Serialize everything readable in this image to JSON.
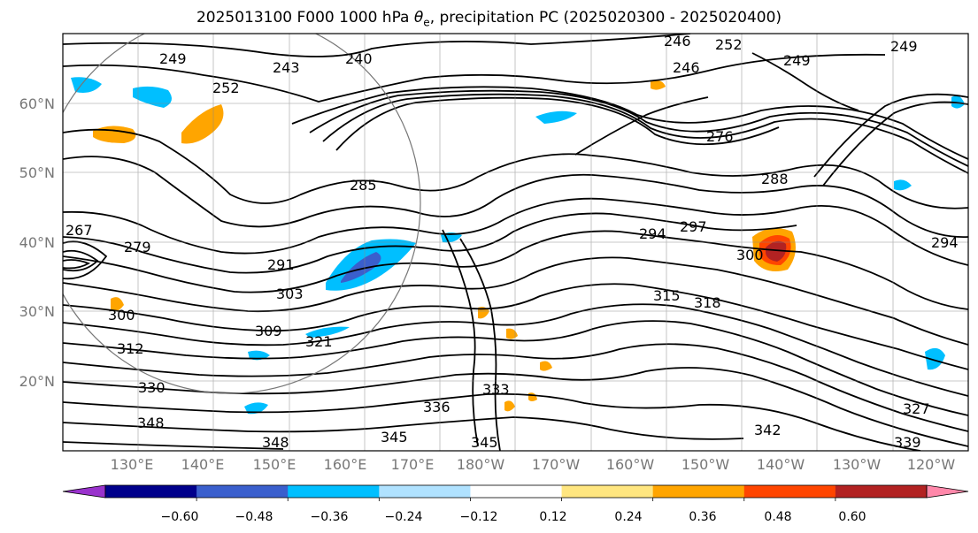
{
  "title_parts": {
    "prefix": "2025013100 F000 1000 hPa ",
    "symbol": "θ",
    "subscript": "e",
    "suffix": ", precipitation PC (2025020300 - 2025020400)"
  },
  "map": {
    "projection": "equirectangular",
    "lon_range": [
      120,
      240
    ],
    "lat_range": [
      10,
      70
    ],
    "lat_ticks": [
      "20°N",
      "30°N",
      "40°N",
      "50°N",
      "60°N"
    ],
    "lon_ticks": [
      "130°E",
      "140°E",
      "150°E",
      "160°E",
      "170°E",
      "180°W",
      "170°W",
      "160°W",
      "150°W",
      "140°W",
      "130°W",
      "120°W"
    ],
    "gridlines": true,
    "contour_color": "#000000",
    "coastline_color": "#000000"
  },
  "contour_labels": [
    "249",
    "240",
    "243",
    "246",
    "249",
    "246",
    "252",
    "276",
    "285",
    "288",
    "267",
    "279",
    "291",
    "294",
    "297",
    "303",
    "300",
    "309",
    "315",
    "318",
    "312",
    "321",
    "330",
    "333",
    "336",
    "348",
    "345",
    "345",
    "348",
    "342",
    "339",
    "327",
    "294",
    "300",
    "252",
    "249"
  ],
  "colorbar": {
    "ticks": [
      "−0.60",
      "−0.48",
      "−0.36",
      "−0.24",
      "−0.12",
      "0.12",
      "0.24",
      "0.36",
      "0.48",
      "0.60"
    ],
    "colors": [
      "#9932cc",
      "#00008b",
      "#3a5fcd",
      "#00bfff",
      "#b0e2ff",
      "#ffffff",
      "#ffe680",
      "#ffa500",
      "#ff4500",
      "#b22222",
      "#ff88aa"
    ],
    "extend": "both"
  }
}
